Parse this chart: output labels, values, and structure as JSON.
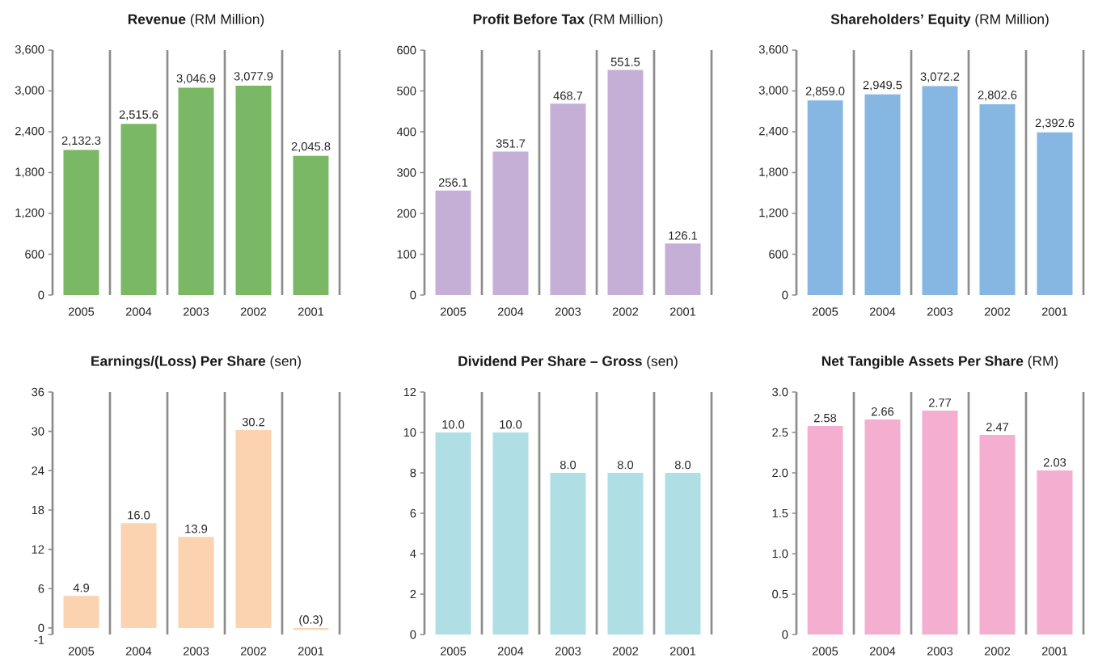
{
  "chart_data": [
    {
      "type": "bar",
      "title": "**Revenue** (RM Million)",
      "categories": [
        "2005",
        "2004",
        "2003",
        "2002",
        "2001"
      ],
      "values": [
        2132.3,
        2515.6,
        3046.9,
        3077.9,
        2045.8
      ],
      "value_labels": [
        "2,132.3",
        "2,515.6",
        "3,046.9",
        "3,077.9",
        "2,045.8"
      ],
      "color": "#7ab865",
      "ylim": [
        0,
        3600
      ],
      "yticks": [
        0,
        600,
        {
          "value": 1200,
          "label": "1,200"
        },
        {
          "value": 1800,
          "label": "1,800"
        },
        {
          "value": 2400,
          "label": "2,400"
        },
        {
          "value": 3000,
          "label": "3,000"
        },
        {
          "value": 3600,
          "label": "3,600"
        }
      ],
      "grid": "x"
    },
    {
      "type": "bar",
      "title": "**Profit Before Tax** (RM Million)",
      "categories": [
        "2005",
        "2004",
        "2003",
        "2002",
        "2001"
      ],
      "values": [
        256.1,
        351.7,
        468.7,
        551.5,
        126.1
      ],
      "value_labels": [
        "256.1",
        "351.7",
        "468.7",
        "551.5",
        "126.1"
      ],
      "color": "#c5afd6",
      "ylim": [
        0,
        600
      ],
      "yticks": [
        0,
        100,
        200,
        300,
        400,
        500,
        600
      ],
      "grid": "x"
    },
    {
      "type": "bar",
      "title": "**Shareholders’ Equity** (RM Million)",
      "categories": [
        "2005",
        "2004",
        "2003",
        "2002",
        "2001"
      ],
      "values": [
        2859.0,
        2949.5,
        3072.2,
        2802.6,
        2392.6
      ],
      "value_labels": [
        "2,859.0",
        "2,949.5",
        "3,072.2",
        "2,802.6",
        "2,392.6"
      ],
      "color": "#85b7e2",
      "ylim": [
        0,
        3600
      ],
      "yticks": [
        0,
        600,
        {
          "value": 1200,
          "label": "1,200"
        },
        {
          "value": 1800,
          "label": "1,800"
        },
        {
          "value": 2400,
          "label": "2,400"
        },
        {
          "value": 3000,
          "label": "3,000"
        },
        {
          "value": 3600,
          "label": "3,600"
        }
      ],
      "grid": "x"
    },
    {
      "type": "bar",
      "title": "**Earnings/(Loss) Per Share** (sen)",
      "categories": [
        "2005",
        "2004",
        "2003",
        "2002",
        "2001"
      ],
      "values": [
        4.9,
        16.0,
        13.9,
        30.2,
        -0.3
      ],
      "value_labels": [
        "4.9",
        "16.0",
        "13.9",
        "30.2",
        "(0.3)"
      ],
      "color": "#fcd3b0",
      "ylim": [
        -1,
        36
      ],
      "yticks": [
        -1,
        0,
        6,
        12,
        18,
        24,
        30,
        36
      ],
      "grid": "x"
    },
    {
      "type": "bar",
      "title": "**Dividend Per Share – Gross** (sen)",
      "categories": [
        "2005",
        "2004",
        "2003",
        "2002",
        "2001"
      ],
      "values": [
        10.0,
        10.0,
        8.0,
        8.0,
        8.0
      ],
      "value_labels": [
        "10.0",
        "10.0",
        "8.0",
        "8.0",
        "8.0"
      ],
      "color": "#afdfe4",
      "ylim": [
        0,
        12
      ],
      "yticks": [
        0,
        2,
        4,
        6,
        8,
        10,
        12
      ],
      "grid": "x"
    },
    {
      "type": "bar",
      "title": "**Net Tangible Assets Per Share** (RM)",
      "categories": [
        "2005",
        "2004",
        "2003",
        "2002",
        "2001"
      ],
      "values": [
        2.58,
        2.66,
        2.77,
        2.47,
        2.03
      ],
      "value_labels": [
        "2.58",
        "2.66",
        "2.77",
        "2.47",
        "2.03"
      ],
      "color": "#f4aed0",
      "ylim": [
        0,
        3.0
      ],
      "yticks": [
        0,
        {
          "value": 0.5,
          "label": "0.5"
        },
        {
          "value": 1.0,
          "label": "1.0"
        },
        {
          "value": 1.5,
          "label": "1.5"
        },
        {
          "value": 2.0,
          "label": "2.0"
        },
        {
          "value": 2.5,
          "label": "2.5"
        },
        {
          "value": 3.0,
          "label": "3.0"
        }
      ],
      "grid": "x"
    }
  ]
}
